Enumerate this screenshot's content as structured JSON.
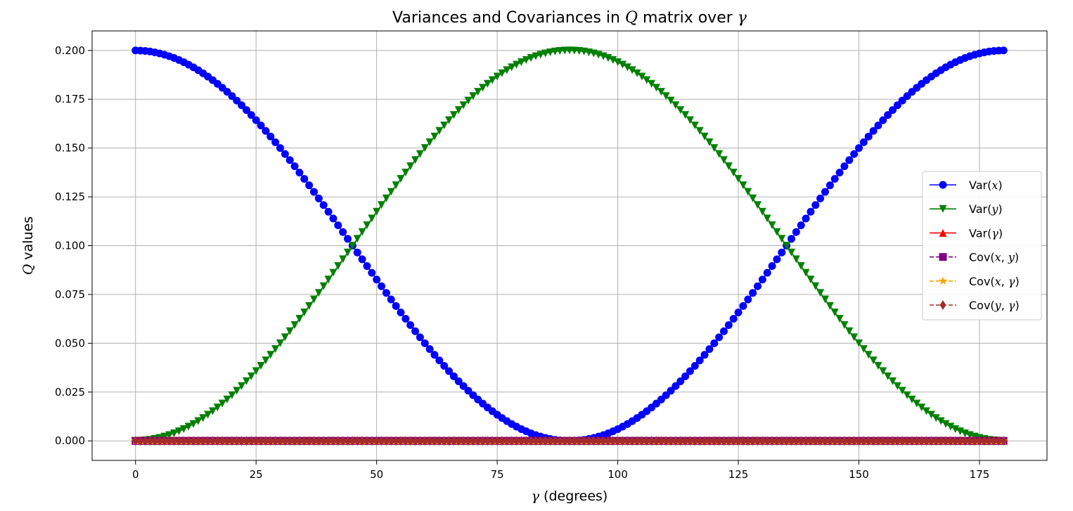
{
  "chart_data": {
    "type": "line",
    "title_parts": [
      {
        "text": "Variances and Covariances in ",
        "italic": false
      },
      {
        "text": "Q",
        "italic": true
      },
      {
        "text": " matrix over ",
        "italic": false
      },
      {
        "text": "γ",
        "italic": true
      }
    ],
    "xlabel_parts": [
      {
        "text": "γ",
        "italic": true
      },
      {
        "text": " (degrees)",
        "italic": false
      }
    ],
    "ylabel_parts": [
      {
        "text": "Q",
        "italic": true
      },
      {
        "text": " values",
        "italic": false
      }
    ],
    "xlim": [
      -9,
      189
    ],
    "ylim": [
      -0.01,
      0.21
    ],
    "xticks": [
      0,
      25,
      50,
      75,
      100,
      125,
      150,
      175
    ],
    "xtick_labels": [
      "0",
      "25",
      "50",
      "75",
      "100",
      "125",
      "150",
      "175"
    ],
    "yticks": [
      0.0,
      0.025,
      0.05,
      0.075,
      0.1,
      0.125,
      0.15,
      0.175,
      0.2
    ],
    "ytick_labels": [
      "0.000",
      "0.025",
      "0.050",
      "0.075",
      "0.100",
      "0.125",
      "0.150",
      "0.175",
      "0.200"
    ],
    "grid": true,
    "legend_position": "center-right",
    "x_domain": {
      "start": 0,
      "end": 180,
      "count": 181
    },
    "series": [
      {
        "label_parts": [
          {
            "text": "Var(",
            "italic": false
          },
          {
            "text": "x",
            "italic": true
          },
          {
            "text": ")",
            "italic": false
          }
        ],
        "color": "#0000ff",
        "marker": "circle",
        "linestyle": "solid",
        "formula": "0.2*cos^2(gamma)"
      },
      {
        "label_parts": [
          {
            "text": "Var(",
            "italic": false
          },
          {
            "text": "y",
            "italic": true
          },
          {
            "text": ")",
            "italic": false
          }
        ],
        "color": "#008000",
        "marker": "triangle-down",
        "linestyle": "solid",
        "formula": "0.2*sin^2(gamma)"
      },
      {
        "label_parts": [
          {
            "text": "Var(",
            "italic": false
          },
          {
            "text": "γ",
            "italic": true
          },
          {
            "text": ")",
            "italic": false
          }
        ],
        "color": "#ff0000",
        "marker": "triangle-up",
        "linestyle": "solid",
        "formula": "0"
      },
      {
        "label_parts": [
          {
            "text": "Cov(",
            "italic": false
          },
          {
            "text": "x",
            "italic": true
          },
          {
            "text": ", ",
            "italic": false
          },
          {
            "text": "y",
            "italic": true
          },
          {
            "text": ")",
            "italic": false
          }
        ],
        "color": "#800080",
        "marker": "square",
        "linestyle": "dashed",
        "formula": "0"
      },
      {
        "label_parts": [
          {
            "text": "Cov(",
            "italic": false
          },
          {
            "text": "x",
            "italic": true
          },
          {
            "text": ", ",
            "italic": false
          },
          {
            "text": "γ",
            "italic": true
          },
          {
            "text": ")",
            "italic": false
          }
        ],
        "color": "#ffa500",
        "marker": "star",
        "linestyle": "dashed",
        "formula": "0"
      },
      {
        "label_parts": [
          {
            "text": "Cov(",
            "italic": false
          },
          {
            "text": "y",
            "italic": true
          },
          {
            "text": ", ",
            "italic": false
          },
          {
            "text": "γ",
            "italic": true
          },
          {
            "text": ")",
            "italic": false
          }
        ],
        "color": "#a52a2a",
        "marker": "diamond",
        "linestyle": "dashed",
        "formula": "0"
      }
    ],
    "peak_value": 0.2
  }
}
